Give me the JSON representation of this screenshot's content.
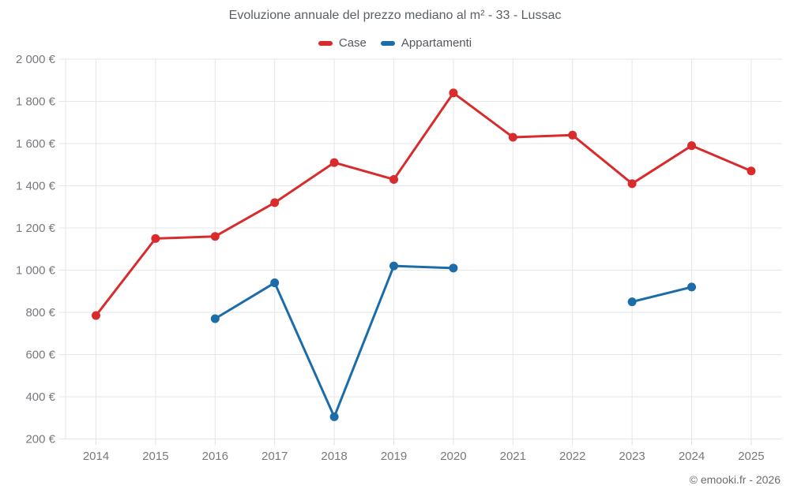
{
  "header": {
    "title": "Evoluzione annuale del prezzo mediano al m² - 33 - Lussac"
  },
  "legend": {
    "items": [
      {
        "label": "Case",
        "color": "#d92b2b"
      },
      {
        "label": "Appartamenti",
        "color": "#1b6ca8"
      }
    ]
  },
  "footer": {
    "credit": "© emooki.fr - 2026"
  },
  "colors": {
    "case_red": "#d92b2b",
    "appartamenti_blue": "#1b6ca8",
    "grid_gray": "#e6e6e6",
    "tick_label_gray": "#76797d",
    "title_gray": "#5a5f66"
  },
  "chart_data": {
    "type": "line",
    "title": "Evoluzione annuale del prezzo mediano al m² - 33 - Lussac",
    "xlabel": "",
    "ylabel": "",
    "categories": [
      "2014",
      "2015",
      "2016",
      "2017",
      "2018",
      "2019",
      "2020",
      "2021",
      "2022",
      "2023",
      "2024",
      "2025"
    ],
    "series": [
      {
        "name": "Case",
        "color": "#d92b2b",
        "values": [
          785,
          1150,
          1160,
          1320,
          1510,
          1430,
          1840,
          1630,
          1640,
          1410,
          1590,
          1470
        ]
      },
      {
        "name": "Appartamenti",
        "color": "#1b6ca8",
        "values": [
          null,
          null,
          770,
          940,
          305,
          1020,
          1010,
          null,
          null,
          850,
          920,
          null
        ]
      }
    ],
    "ylim": [
      200,
      2000
    ],
    "ytick_step": 200,
    "ytick_labels": [
      "200 €",
      "400 €",
      "600 €",
      "800 €",
      "1 000 €",
      "1 200 €",
      "1 400 €",
      "1 600 €",
      "1 800 €",
      "2 000 €"
    ],
    "grid": true,
    "legend_position": "top",
    "marker": "circle"
  }
}
